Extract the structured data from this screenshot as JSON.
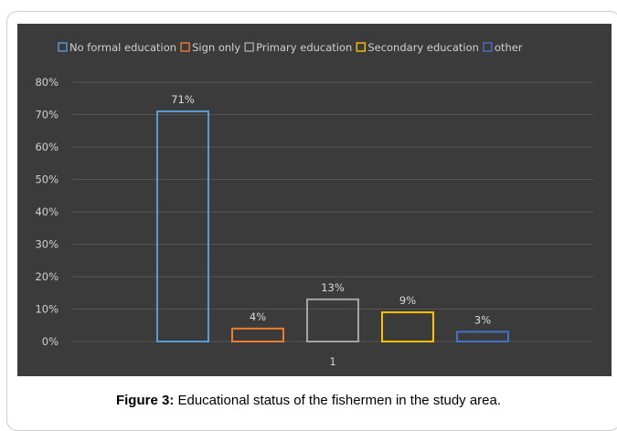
{
  "caption": {
    "label": "Figure 3:",
    "text": "Educational status of the fishermen in the study area."
  },
  "chart_data": {
    "type": "bar",
    "categories": [
      "1"
    ],
    "series": [
      {
        "name": "No formal education",
        "values": [
          71
        ],
        "color": "#5b9bd5",
        "label": "71%"
      },
      {
        "name": "Sign only",
        "values": [
          4
        ],
        "color": "#ed7d31",
        "label": "4%"
      },
      {
        "name": "Primary education",
        "values": [
          13
        ],
        "color": "#a5a5a5",
        "label": "13%"
      },
      {
        "name": "Secondary education",
        "values": [
          9
        ],
        "color": "#ffc000",
        "label": "9%"
      },
      {
        "name": "other",
        "values": [
          3
        ],
        "color": "#4472c4",
        "label": "3%"
      }
    ],
    "yticks": [
      "0%",
      "10%",
      "20%",
      "30%",
      "40%",
      "50%",
      "60%",
      "70%",
      "80%"
    ],
    "ylim": [
      0,
      80
    ],
    "grid": true,
    "legend": "top",
    "background": "#3b3b3b",
    "gridline_color": "#555555"
  }
}
